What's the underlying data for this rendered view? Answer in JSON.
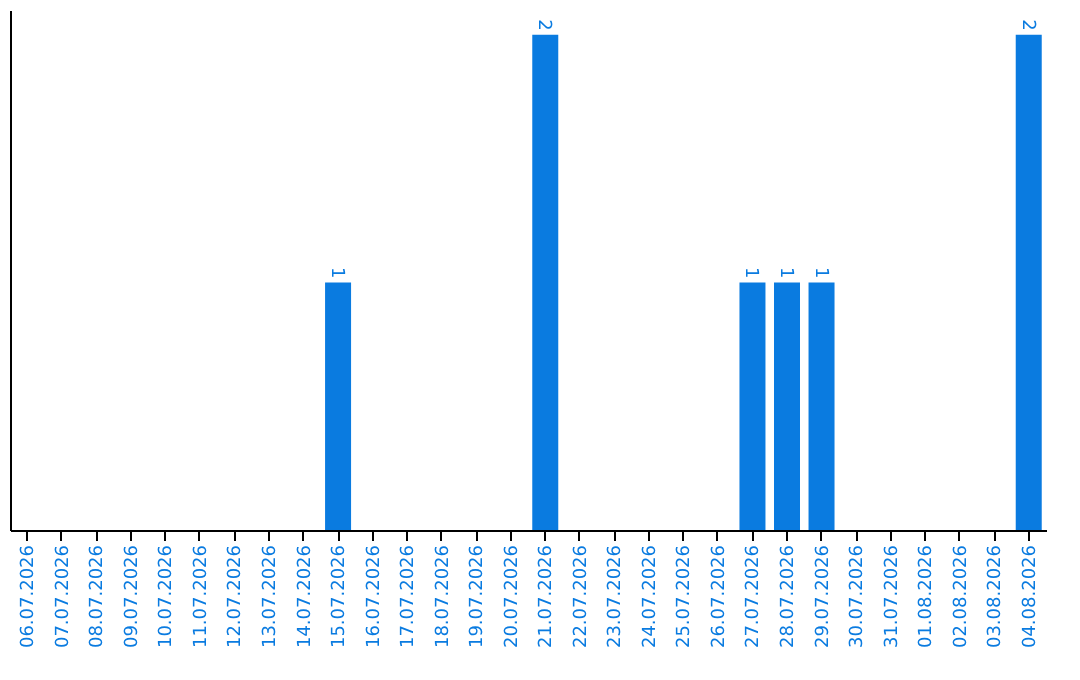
{
  "chart_data": {
    "type": "bar",
    "categories": [
      "06.07.2026",
      "07.07.2026",
      "08.07.2026",
      "09.07.2026",
      "10.07.2026",
      "11.07.2026",
      "12.07.2026",
      "13.07.2026",
      "14.07.2026",
      "15.07.2026",
      "16.07.2026",
      "17.07.2026",
      "18.07.2026",
      "19.07.2026",
      "20.07.2026",
      "21.07.2026",
      "22.07.2026",
      "23.07.2026",
      "24.07.2026",
      "25.07.2026",
      "26.07.2026",
      "27.07.2026",
      "28.07.2026",
      "29.07.2026",
      "30.07.2026",
      "31.07.2026",
      "01.08.2026",
      "02.08.2026",
      "03.08.2026",
      "04.08.2026"
    ],
    "values": [
      0,
      0,
      0,
      0,
      0,
      0,
      0,
      0,
      0,
      1,
      0,
      0,
      0,
      0,
      0,
      2,
      0,
      0,
      0,
      0,
      0,
      1,
      1,
      1,
      0,
      0,
      0,
      0,
      0,
      2
    ],
    "value_labels": [
      null,
      null,
      null,
      null,
      null,
      null,
      null,
      null,
      null,
      "1",
      null,
      null,
      null,
      null,
      null,
      "2",
      null,
      null,
      null,
      null,
      null,
      "1",
      "1",
      "1",
      null,
      null,
      null,
      null,
      null,
      "2"
    ],
    "color": "#0a7be0",
    "ylim": [
      0,
      2.1
    ],
    "tick_labels": "x",
    "grid": false
  }
}
